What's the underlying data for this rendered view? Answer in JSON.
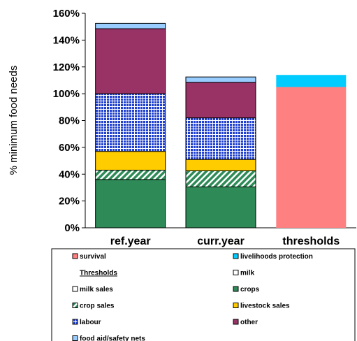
{
  "chart_data": {
    "type": "bar",
    "stacked": true,
    "ylabel": "% minimum food needs",
    "ylim": [
      0,
      160
    ],
    "yticks": [
      "0%",
      "20%",
      "40%",
      "60%",
      "80%",
      "100%",
      "120%",
      "140%",
      "160%"
    ],
    "grid": false,
    "categories": [
      "ref.year",
      "curr.year",
      "thresholds"
    ],
    "series": [
      {
        "name": "crops",
        "color": "#2e8b57",
        "values": [
          36,
          30.5,
          0
        ]
      },
      {
        "name": "crop sales",
        "color": "#2e8b57",
        "pattern": "diagonal-hatch",
        "values": [
          7,
          12,
          0
        ]
      },
      {
        "name": "livestock sales",
        "color": "#ffcc00",
        "values": [
          14,
          8.5,
          0
        ]
      },
      {
        "name": "labour",
        "color": "#1f3fcf",
        "pattern": "grid",
        "values": [
          43,
          31,
          0
        ]
      },
      {
        "name": "other",
        "color": "#993366",
        "values": [
          48.5,
          26.5,
          0
        ]
      },
      {
        "name": "food aid/safety nets",
        "color": "#99ccff",
        "values": [
          4,
          4,
          0
        ]
      },
      {
        "name": "survival",
        "color": "#ff8080",
        "values": [
          0,
          0,
          105
        ]
      },
      {
        "name": "livelihoods protection",
        "color": "#00ccff",
        "values": [
          0,
          0,
          9
        ]
      }
    ],
    "legend": {
      "placement": "bottom",
      "title": "Thresholds",
      "entries": [
        {
          "label": "survival",
          "color": "#ff8080",
          "pattern": "solid"
        },
        {
          "label": "livelihoods protection",
          "color": "#00ccff",
          "pattern": "solid"
        },
        {
          "label": "Thresholds",
          "color": "",
          "pattern": "none"
        },
        {
          "label": "milk",
          "color": "#ffffff",
          "pattern": "solid"
        },
        {
          "label": "milk sales",
          "color": "#ffffff",
          "pattern": "solid"
        },
        {
          "label": "crops",
          "color": "#2e8b57",
          "pattern": "solid"
        },
        {
          "label": "crop sales",
          "color": "#2e8b57",
          "pattern": "diagonal-hatch"
        },
        {
          "label": "livestock sales",
          "color": "#ffcc00",
          "pattern": "solid"
        },
        {
          "label": "labour",
          "color": "#1f3fcf",
          "pattern": "grid"
        },
        {
          "label": "other",
          "color": "#993366",
          "pattern": "solid"
        },
        {
          "label": "food aid/safety nets",
          "color": "#99ccff",
          "pattern": "solid"
        }
      ]
    }
  }
}
